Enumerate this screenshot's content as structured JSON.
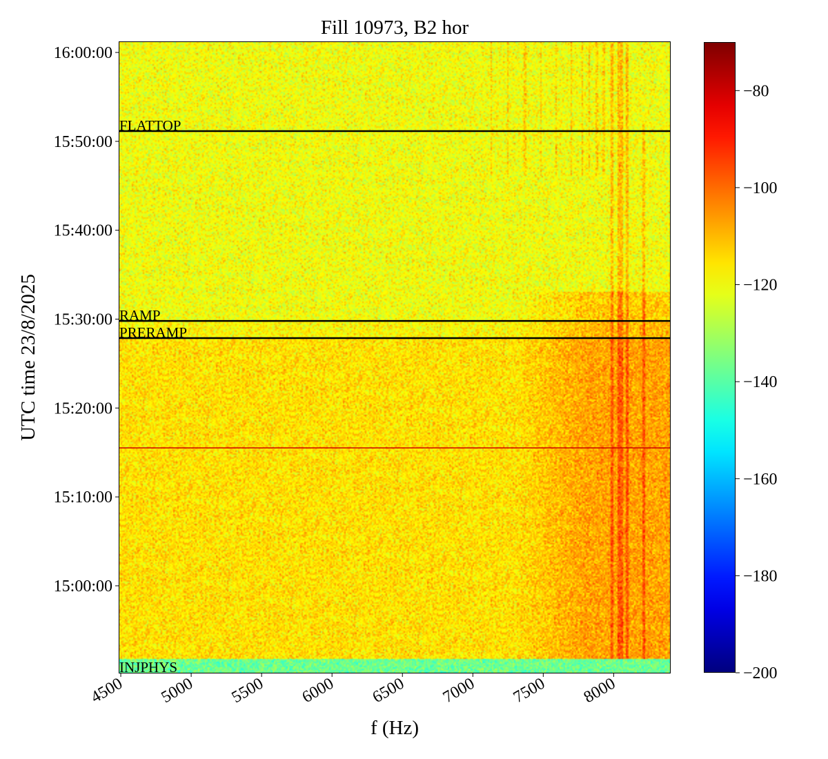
{
  "chart_data": {
    "type": "heatmap",
    "title": "Fill 10973, B2 hor",
    "xlabel": "f (Hz)",
    "ylabel": "UTC time 23/8/2025",
    "xlim": [
      4490,
      8400
    ],
    "ylim": [
      "14:50:13",
      "16:01:10"
    ],
    "x_ticks": [
      4500,
      5000,
      5500,
      6000,
      6500,
      7000,
      7500,
      8000
    ],
    "x_tick_labels": [
      "4500",
      "5000",
      "5500",
      "6000",
      "6500",
      "7000",
      "7500",
      "8000"
    ],
    "y_ticks": [
      "15:00:00",
      "15:10:00",
      "15:20:00",
      "15:30:00",
      "15:40:00",
      "15:50:00",
      "16:00:00"
    ],
    "colorbar": {
      "colormap": "jet",
      "vmin": -200,
      "vmax": -70,
      "ticks": [
        -80,
        -100,
        -120,
        -140,
        -160,
        -180,
        -200
      ],
      "tick_labels": [
        "−80",
        "−100",
        "−120",
        "−140",
        "−160",
        "−180",
        "−200"
      ]
    },
    "annotations": [
      {
        "label": "FLATTOP",
        "time": "15:51:09",
        "color": "#000000"
      },
      {
        "label": "RAMP",
        "time": "15:29:48",
        "color": "#000000"
      },
      {
        "label": "PRERAMP",
        "time": "15:27:52",
        "color": "#000000"
      },
      {
        "label": "INJPHYS",
        "time": "14:50:13",
        "color": "#000000"
      },
      {
        "label": "",
        "time": "15:15:31",
        "color": "#cc0000"
      }
    ],
    "grid": false
  }
}
